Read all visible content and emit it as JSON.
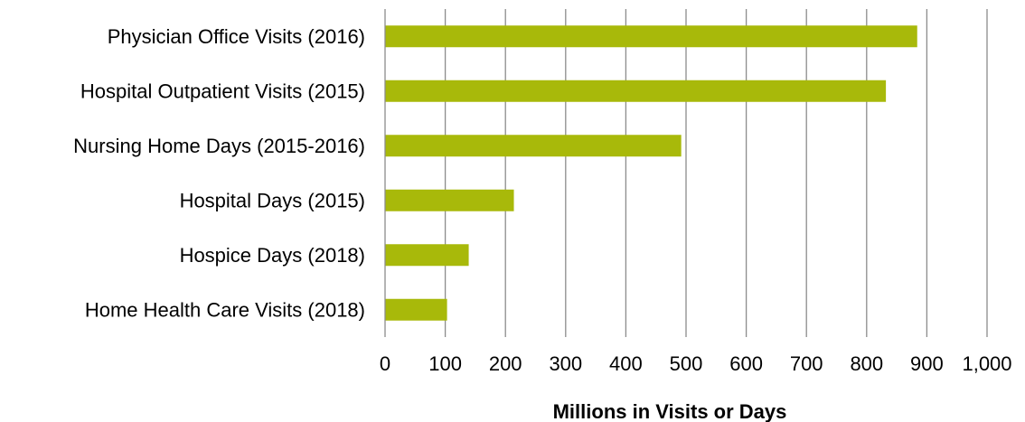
{
  "chart_data": {
    "type": "bar",
    "orientation": "horizontal",
    "categories": [
      "Physician Office Visits (2016)",
      "Hospital Outpatient Visits (2015)",
      "Nursing Home Days (2015-2016)",
      "Hospital Days (2015)",
      "Hospice Days (2018)",
      "Home Health Care Visits (2018)"
    ],
    "values": [
      884,
      832,
      492,
      214,
      139,
      103
    ],
    "xlabel": "Millions in Visits or Days",
    "ylabel": "",
    "title": "",
    "xlim": [
      0,
      1000
    ],
    "xticks": [
      0,
      100,
      200,
      300,
      400,
      500,
      600,
      700,
      800,
      900,
      1000
    ],
    "xtick_labels": [
      "0",
      "100",
      "200",
      "300",
      "400",
      "500",
      "600",
      "700",
      "800",
      "900",
      "1,000"
    ],
    "grid": "vertical",
    "legend": "none",
    "colors": {
      "bar": "#a8b90a",
      "grid": "#8c8c8c",
      "axis": "#8c8c8c"
    }
  }
}
